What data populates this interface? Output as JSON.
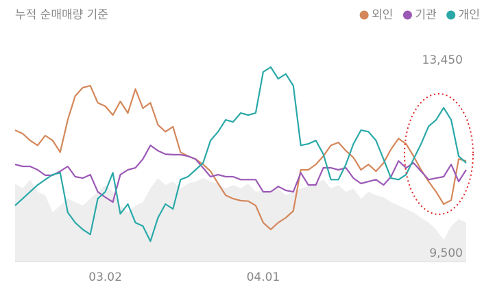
{
  "chart_data": {
    "type": "line",
    "title": "누적 순매매량 기준",
    "categories": [
      null,
      null,
      null,
      null,
      null,
      null,
      null,
      null,
      null,
      null,
      null,
      null,
      "03.02",
      null,
      null,
      null,
      null,
      null,
      null,
      null,
      null,
      null,
      null,
      null,
      null,
      null,
      null,
      null,
      null,
      null,
      null,
      null,
      null,
      "04.01",
      null,
      null,
      null,
      null,
      null,
      null,
      null,
      null,
      null,
      null,
      null,
      null,
      null,
      null,
      null,
      null,
      null,
      null,
      null,
      null,
      null,
      null,
      null,
      null,
      null,
      null,
      null
    ],
    "ylim": [
      9334,
      13702
    ],
    "yticks": [
      {
        "value": 13450,
        "label": "13,450"
      },
      {
        "value": 9500,
        "label": "9,500"
      }
    ],
    "grid": false,
    "legend": "top-right",
    "area": {
      "color": "#eeeeee",
      "values": [
        10930,
        10830,
        11010,
        10760,
        10690,
        10340,
        10480,
        10620,
        10550,
        10480,
        10620,
        10760,
        10900,
        10760,
        10480,
        10340,
        10480,
        10550,
        10830,
        11040,
        10900,
        10970,
        10830,
        10930,
        10970,
        11040,
        10970,
        10930,
        10830,
        10900,
        10830,
        10930,
        10760,
        10790,
        10730,
        10830,
        10690,
        10760,
        10830,
        10870,
        10930,
        11010,
        10830,
        10900,
        10760,
        10830,
        10620,
        10760,
        10690,
        10650,
        10550,
        10480,
        10410,
        10340,
        10230,
        10130,
        9990,
        9780,
        10060,
        10200,
        10130
      ]
    },
    "series": [
      {
        "name": "외인",
        "color": "#d4875a",
        "values": [
          12020,
          11950,
          11810,
          11710,
          11910,
          11810,
          11570,
          12230,
          12720,
          12890,
          12930,
          12580,
          12510,
          12330,
          12610,
          12370,
          12860,
          12470,
          12580,
          12130,
          11990,
          12090,
          11570,
          11490,
          11430,
          11320,
          11180,
          10930,
          10690,
          10620,
          10580,
          10570,
          10480,
          10130,
          9990,
          10130,
          10230,
          10370,
          11210,
          11210,
          11320,
          11490,
          11710,
          11770,
          11600,
          11460,
          11210,
          11320,
          11180,
          11350,
          11630,
          11850,
          11740,
          11490,
          11210,
          10970,
          10760,
          10510,
          10590,
          11430,
          11390
        ]
      },
      {
        "name": "기관",
        "color": "#9b59b6",
        "values": [
          11320,
          11280,
          11280,
          11210,
          11100,
          11100,
          11180,
          11280,
          11070,
          11040,
          11110,
          10760,
          10650,
          10550,
          11110,
          11210,
          11250,
          11430,
          11710,
          11600,
          11530,
          11520,
          11520,
          11490,
          11430,
          11250,
          11070,
          11110,
          11070,
          11070,
          11010,
          11010,
          11010,
          10760,
          10760,
          10870,
          10790,
          10760,
          11150,
          10900,
          10900,
          11250,
          11250,
          11210,
          11250,
          11040,
          10930,
          10970,
          11010,
          10900,
          11070,
          11390,
          11250,
          11350,
          11180,
          11010,
          11040,
          11070,
          11320,
          10970,
          11210
        ]
      },
      {
        "name": "개인",
        "color": "#2aa8a8",
        "values": [
          10480,
          10620,
          10760,
          10900,
          11010,
          11110,
          11150,
          10340,
          10130,
          9990,
          9890,
          10620,
          10760,
          11150,
          10310,
          10510,
          10130,
          10060,
          9750,
          10230,
          10510,
          10410,
          11010,
          11070,
          11210,
          11350,
          11810,
          11990,
          12230,
          12190,
          12370,
          12330,
          12370,
          13210,
          13310,
          13070,
          13170,
          12930,
          11710,
          11740,
          11810,
          11530,
          11010,
          11010,
          11320,
          11740,
          12020,
          11990,
          11810,
          11430,
          11040,
          11010,
          11110,
          11430,
          11740,
          12100,
          12230,
          12480,
          12230,
          11490,
          11350
        ]
      }
    ]
  }
}
